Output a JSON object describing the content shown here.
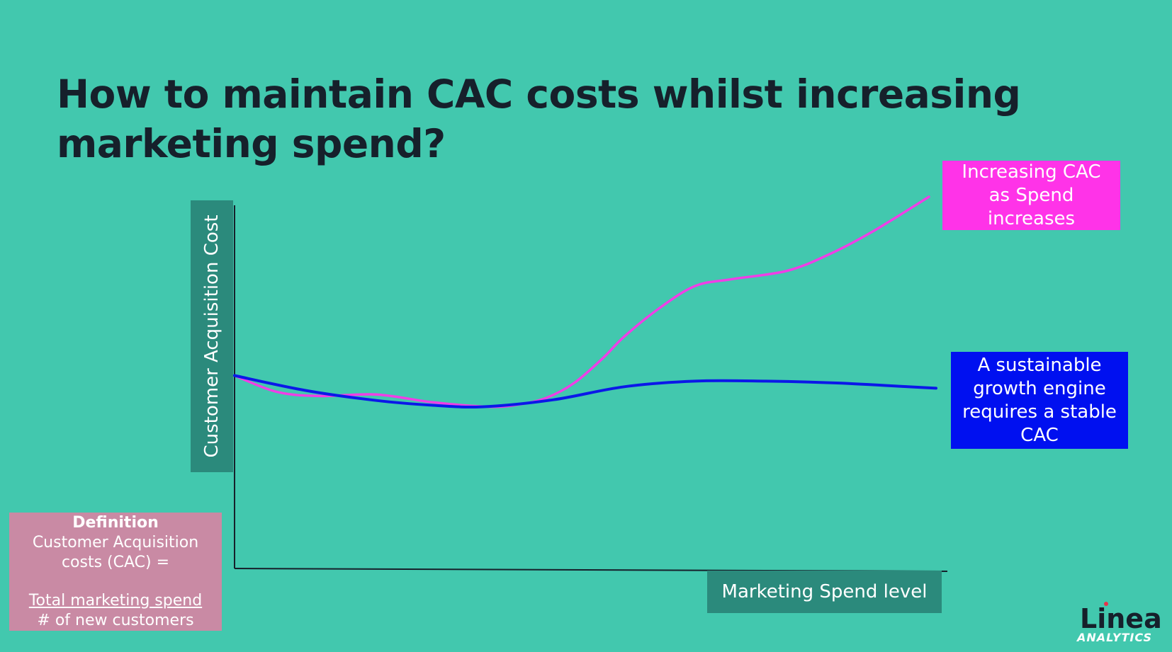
{
  "title": "How to maintain CAC costs whilst increasing marketing spend?",
  "chart_data": {
    "type": "line",
    "ylabel": "Customer Acquisition Cost",
    "xlabel": "Marketing Spend level",
    "xlim": [
      0,
      100
    ],
    "ylim": [
      0,
      100
    ],
    "series": [
      {
        "name": "Increasing CAC as Spend increases",
        "color": "#f03ee6",
        "x": [
          0,
          6,
          12,
          20,
          28,
          36,
          40,
          44,
          48,
          52,
          55,
          60,
          65,
          70,
          78,
          84,
          90,
          98
        ],
        "y": [
          51.9,
          47.5,
          46.4,
          46.8,
          44.7,
          43.5,
          44.1,
          45.9,
          50.0,
          56.6,
          62.4,
          70.1,
          76.0,
          77.8,
          80.1,
          84.6,
          90.6,
          100.0
        ]
      },
      {
        "name": "A sustainable growth engine requires a stable CAC",
        "color": "#0b18e8",
        "x": [
          0,
          10,
          20,
          28,
          35,
          45,
          55,
          65,
          75,
          85,
          95,
          99
        ],
        "y": [
          51.9,
          47.9,
          45.2,
          43.9,
          43.5,
          45.4,
          48.9,
          50.4,
          50.4,
          49.9,
          48.9,
          48.5
        ]
      }
    ]
  },
  "callouts": {
    "pink": [
      "Increasing CAC",
      "as Spend",
      "increases"
    ],
    "blue": [
      "A sustainable",
      "growth engine",
      "requires a stable",
      "CAC"
    ]
  },
  "definition": {
    "heading": "Definition",
    "line1": "Customer Acquisition",
    "line2": "costs (CAC) =",
    "numerator": "Total marketing spend",
    "denominator": "# of new customers"
  },
  "logo": {
    "name": "Linea",
    "sub": "ANALYTICS"
  },
  "colors": {
    "background": "#42c8ae",
    "label_box": "#2b8a7c",
    "pink": "#ff33e8",
    "blue": "#0010f0",
    "definition_box": "#c98aa4"
  }
}
